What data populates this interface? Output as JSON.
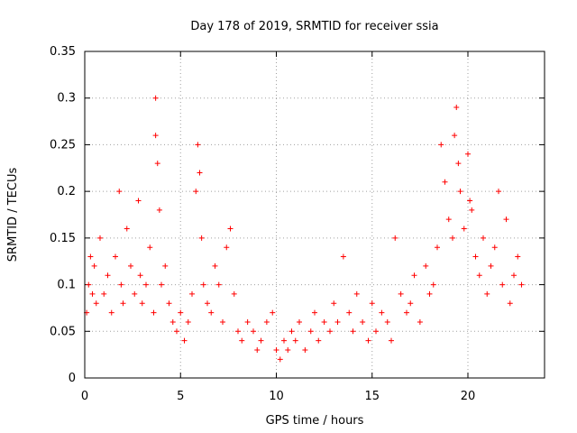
{
  "chart_data": {
    "type": "scatter",
    "title": "Day 178 of 2019, SRMTID for receiver ssia",
    "xlabel": "GPS time / hours",
    "ylabel": "SRMTID / TECUs",
    "xlim": [
      0,
      24
    ],
    "ylim": [
      0,
      0.35
    ],
    "xticks": [
      0,
      5,
      10,
      15,
      20
    ],
    "yticks": [
      0,
      0.05,
      0.1,
      0.15,
      0.2,
      0.25,
      0.3,
      0.35
    ],
    "xtick_labels": [
      "0",
      "5",
      "10",
      "15",
      "20"
    ],
    "ytick_labels": [
      "0",
      "0.05",
      "0.1",
      "0.15",
      "0.2",
      "0.25",
      "0.3",
      "0.35"
    ],
    "grid": true,
    "marker": "+",
    "series": [
      {
        "name": "SRMTID",
        "color": "#ff0000",
        "x": [
          0.1,
          0.2,
          0.3,
          0.4,
          0.5,
          0.6,
          0.8,
          1.0,
          1.2,
          1.4,
          1.6,
          1.8,
          1.9,
          2.0,
          2.2,
          2.4,
          2.6,
          2.8,
          2.9,
          3.0,
          3.2,
          3.4,
          3.6,
          3.7,
          3.7,
          3.8,
          3.9,
          4.0,
          4.2,
          4.4,
          4.6,
          4.8,
          5.0,
          5.2,
          5.4,
          5.6,
          5.8,
          5.9,
          6.0,
          6.1,
          6.2,
          6.4,
          6.6,
          6.8,
          7.0,
          7.2,
          7.4,
          7.6,
          7.8,
          8.0,
          8.2,
          8.5,
          8.8,
          9.0,
          9.2,
          9.5,
          9.8,
          10.0,
          10.2,
          10.4,
          10.6,
          10.8,
          11.0,
          11.2,
          11.5,
          11.8,
          12.0,
          12.2,
          12.5,
          12.8,
          13.0,
          13.2,
          13.5,
          13.8,
          14.0,
          14.2,
          14.5,
          14.8,
          15.0,
          15.2,
          15.5,
          15.8,
          16.0,
          16.2,
          16.5,
          16.8,
          17.0,
          17.2,
          17.5,
          17.8,
          18.0,
          18.2,
          18.4,
          18.6,
          18.8,
          19.0,
          19.2,
          19.3,
          19.4,
          19.5,
          19.6,
          19.8,
          20.0,
          20.1,
          20.2,
          20.4,
          20.6,
          20.8,
          21.0,
          21.2,
          21.4,
          21.6,
          21.8,
          22.0,
          22.2,
          22.4,
          22.6,
          22.8
        ],
        "y": [
          0.07,
          0.1,
          0.13,
          0.09,
          0.12,
          0.08,
          0.15,
          0.09,
          0.11,
          0.07,
          0.13,
          0.2,
          0.1,
          0.08,
          0.16,
          0.12,
          0.09,
          0.19,
          0.11,
          0.08,
          0.1,
          0.14,
          0.07,
          0.3,
          0.26,
          0.23,
          0.18,
          0.1,
          0.12,
          0.08,
          0.06,
          0.05,
          0.07,
          0.04,
          0.06,
          0.09,
          0.2,
          0.25,
          0.22,
          0.15,
          0.1,
          0.08,
          0.07,
          0.12,
          0.1,
          0.06,
          0.14,
          0.16,
          0.09,
          0.05,
          0.04,
          0.06,
          0.05,
          0.03,
          0.04,
          0.06,
          0.07,
          0.03,
          0.02,
          0.04,
          0.03,
          0.05,
          0.04,
          0.06,
          0.03,
          0.05,
          0.07,
          0.04,
          0.06,
          0.05,
          0.08,
          0.06,
          0.13,
          0.07,
          0.05,
          0.09,
          0.06,
          0.04,
          0.08,
          0.05,
          0.07,
          0.06,
          0.04,
          0.15,
          0.09,
          0.07,
          0.08,
          0.11,
          0.06,
          0.12,
          0.09,
          0.1,
          0.14,
          0.25,
          0.21,
          0.17,
          0.15,
          0.26,
          0.29,
          0.23,
          0.2,
          0.16,
          0.24,
          0.19,
          0.18,
          0.13,
          0.11,
          0.15,
          0.09,
          0.12,
          0.14,
          0.2,
          0.1,
          0.17,
          0.08,
          0.11,
          0.13,
          0.1
        ]
      }
    ]
  }
}
